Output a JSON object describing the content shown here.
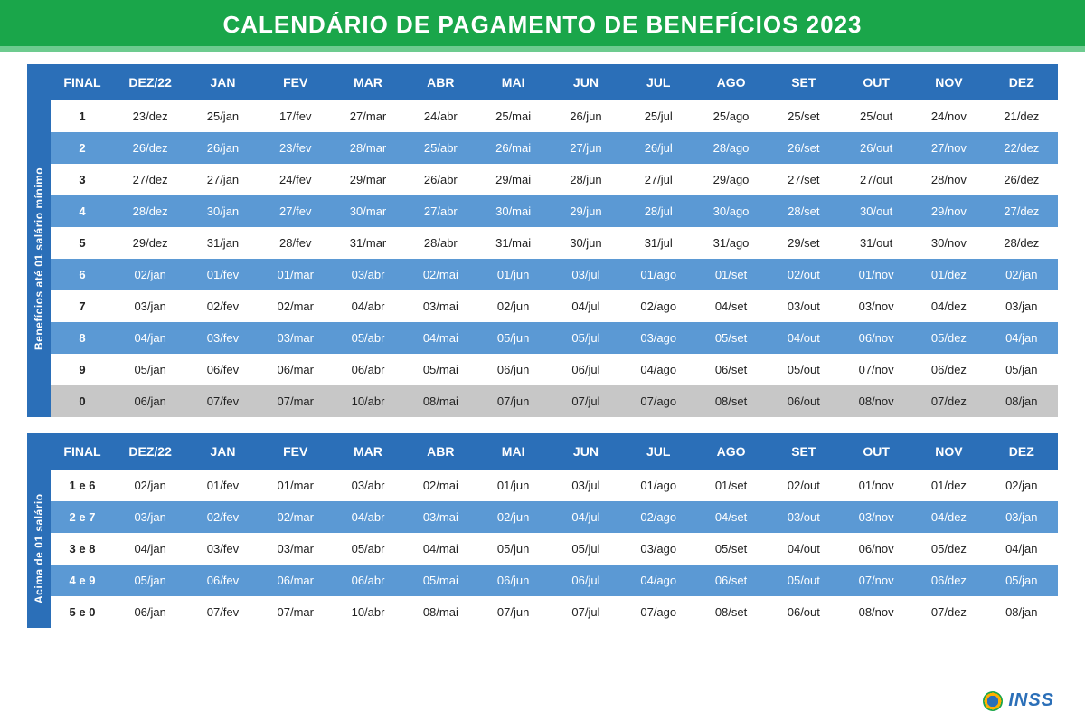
{
  "title": "CALENDÁRIO DE PAGAMENTO DE BENEFÍCIOS 2023",
  "colors": {
    "header_green": "#1aa64a",
    "header_green_border": "#6dcb8f",
    "table_header_blue": "#2b6fb8",
    "row_even_blue": "#5b99d4",
    "row_odd_white": "#ffffff",
    "row_last_grey": "#c7c7c7",
    "text_dark": "#222222",
    "text_white": "#ffffff"
  },
  "typography": {
    "title_fontsize": 26,
    "header_fontsize": 14,
    "cell_fontsize": 13,
    "sidelabel_fontsize": 12,
    "footer_fontsize": 20
  },
  "columns": [
    "FINAL",
    "DEZ/22",
    "JAN",
    "FEV",
    "MAR",
    "ABR",
    "MAI",
    "JUN",
    "JUL",
    "AGO",
    "SET",
    "OUT",
    "NOV",
    "DEZ"
  ],
  "table1": {
    "side_label": "Benefícios até 01 salário mínimo",
    "rows": [
      {
        "style": "odd",
        "cells": [
          "1",
          "23/dez",
          "25/jan",
          "17/fev",
          "27/mar",
          "24/abr",
          "25/mai",
          "26/jun",
          "25/jul",
          "25/ago",
          "25/set",
          "25/out",
          "24/nov",
          "21/dez"
        ]
      },
      {
        "style": "even",
        "cells": [
          "2",
          "26/dez",
          "26/jan",
          "23/fev",
          "28/mar",
          "25/abr",
          "26/mai",
          "27/jun",
          "26/jul",
          "28/ago",
          "26/set",
          "26/out",
          "27/nov",
          "22/dez"
        ]
      },
      {
        "style": "odd",
        "cells": [
          "3",
          "27/dez",
          "27/jan",
          "24/fev",
          "29/mar",
          "26/abr",
          "29/mai",
          "28/jun",
          "27/jul",
          "29/ago",
          "27/set",
          "27/out",
          "28/nov",
          "26/dez"
        ]
      },
      {
        "style": "even",
        "cells": [
          "4",
          "28/dez",
          "30/jan",
          "27/fev",
          "30/mar",
          "27/abr",
          "30/mai",
          "29/jun",
          "28/jul",
          "30/ago",
          "28/set",
          "30/out",
          "29/nov",
          "27/dez"
        ]
      },
      {
        "style": "odd",
        "cells": [
          "5",
          "29/dez",
          "31/jan",
          "28/fev",
          "31/mar",
          "28/abr",
          "31/mai",
          "30/jun",
          "31/jul",
          "31/ago",
          "29/set",
          "31/out",
          "30/nov",
          "28/dez"
        ]
      },
      {
        "style": "even",
        "cells": [
          "6",
          "02/jan",
          "01/fev",
          "01/mar",
          "03/abr",
          "02/mai",
          "01/jun",
          "03/jul",
          "01/ago",
          "01/set",
          "02/out",
          "01/nov",
          "01/dez",
          "02/jan"
        ]
      },
      {
        "style": "odd",
        "cells": [
          "7",
          "03/jan",
          "02/fev",
          "02/mar",
          "04/abr",
          "03/mai",
          "02/jun",
          "04/jul",
          "02/ago",
          "04/set",
          "03/out",
          "03/nov",
          "04/dez",
          "03/jan"
        ]
      },
      {
        "style": "even",
        "cells": [
          "8",
          "04/jan",
          "03/fev",
          "03/mar",
          "05/abr",
          "04/mai",
          "05/jun",
          "05/jul",
          "03/ago",
          "05/set",
          "04/out",
          "06/nov",
          "05/dez",
          "04/jan"
        ]
      },
      {
        "style": "odd",
        "cells": [
          "9",
          "05/jan",
          "06/fev",
          "06/mar",
          "06/abr",
          "05/mai",
          "06/jun",
          "06/jul",
          "04/ago",
          "06/set",
          "05/out",
          "07/nov",
          "06/dez",
          "05/jan"
        ]
      },
      {
        "style": "grey",
        "cells": [
          "0",
          "06/jan",
          "07/fev",
          "07/mar",
          "10/abr",
          "08/mai",
          "07/jun",
          "07/jul",
          "07/ago",
          "08/set",
          "06/out",
          "08/nov",
          "07/dez",
          "08/jan"
        ]
      }
    ]
  },
  "table2": {
    "side_label": "Acima de 01 salário",
    "rows": [
      {
        "style": "odd",
        "cells": [
          "1 e 6",
          "02/jan",
          "01/fev",
          "01/mar",
          "03/abr",
          "02/mai",
          "01/jun",
          "03/jul",
          "01/ago",
          "01/set",
          "02/out",
          "01/nov",
          "01/dez",
          "02/jan"
        ]
      },
      {
        "style": "even",
        "cells": [
          "2 e 7",
          "03/jan",
          "02/fev",
          "02/mar",
          "04/abr",
          "03/mai",
          "02/jun",
          "04/jul",
          "02/ago",
          "04/set",
          "03/out",
          "03/nov",
          "04/dez",
          "03/jan"
        ]
      },
      {
        "style": "odd",
        "cells": [
          "3 e 8",
          "04/jan",
          "03/fev",
          "03/mar",
          "05/abr",
          "04/mai",
          "05/jun",
          "05/jul",
          "03/ago",
          "05/set",
          "04/out",
          "06/nov",
          "05/dez",
          "04/jan"
        ]
      },
      {
        "style": "even",
        "cells": [
          "4 e 9",
          "05/jan",
          "06/fev",
          "06/mar",
          "06/abr",
          "05/mai",
          "06/jun",
          "06/jul",
          "04/ago",
          "06/set",
          "05/out",
          "07/nov",
          "06/dez",
          "05/jan"
        ]
      },
      {
        "style": "odd",
        "cells": [
          "5 e 0",
          "06/jan",
          "07/fev",
          "07/mar",
          "10/abr",
          "08/mai",
          "07/jun",
          "07/jul",
          "07/ago",
          "08/set",
          "06/out",
          "08/nov",
          "07/dez",
          "08/jan"
        ]
      }
    ]
  },
  "footer": "INSS"
}
